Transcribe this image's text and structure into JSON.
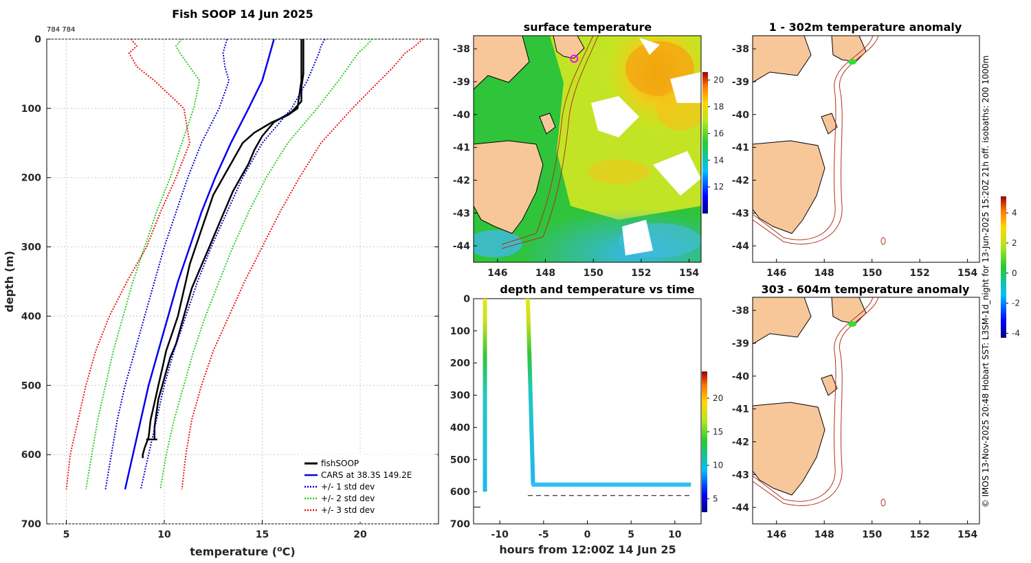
{
  "figure_title": "Fish SOOP 14 Jun 2025",
  "corner_note": "784 784",
  "side_note": "© IMOS 13-Nov-2025 20:48 Hobart SST: L3SM-1d_night for 13-Jun-2025 15:20Z 21h off. isobaths: 200  1000m",
  "colors": {
    "fish": "#000000",
    "cars": "#0000ee",
    "std1": "#0000cc",
    "std2": "#22cc22",
    "std3": "#ee1111",
    "land": "#f7c79a",
    "isobath": "#b03020"
  },
  "chart_data": [
    {
      "id": "profile",
      "type": "line",
      "title": "Fish SOOP 14 Jun 2025",
      "xlabel": "temperature (°C)",
      "ylabel": "depth (m)",
      "xlim": [
        4,
        24
      ],
      "ylim": [
        0,
        700
      ],
      "xticks": [
        "5",
        "10",
        "15",
        "20"
      ],
      "yticks": [
        "0",
        "100",
        "200",
        "300",
        "400",
        "500",
        "600",
        "700"
      ],
      "legend": [
        "fishSOOP",
        "CARS at 38.3S 149.2E",
        "+/- 1 std dev",
        "+/- 2 std dev",
        "+/- 3 std dev"
      ],
      "series": [
        {
          "name": "fishSOOP down",
          "depth": [
            0,
            20,
            40,
            60,
            80,
            100,
            110,
            120,
            135,
            150,
            175,
            200,
            225,
            250,
            275,
            300,
            325,
            350,
            375,
            400,
            425,
            450,
            475,
            500,
            525,
            550,
            575,
            590,
            600,
            605
          ],
          "temp": [
            17,
            17,
            17,
            17,
            16.9,
            16.8,
            16.3,
            15.5,
            14.6,
            14.0,
            13.5,
            13.0,
            12.5,
            12.2,
            11.9,
            11.6,
            11.3,
            11.1,
            10.9,
            10.7,
            10.4,
            10.1,
            9.9,
            9.7,
            9.5,
            9.3,
            9.2,
            9.0,
            8.9,
            8.9
          ]
        },
        {
          "name": "fishSOOP up",
          "depth": [
            578,
            560,
            540,
            520,
            500,
            480,
            460,
            440,
            420,
            400,
            380,
            360,
            340,
            320,
            300,
            280,
            260,
            240,
            220,
            200,
            180,
            160,
            140,
            120,
            105,
            90,
            70,
            50,
            30,
            0
          ],
          "temp": [
            9.5,
            9.5,
            9.6,
            9.7,
            9.9,
            10.1,
            10.3,
            10.6,
            10.8,
            11.0,
            11.2,
            11.4,
            11.7,
            12.0,
            12.3,
            12.6,
            12.9,
            13.2,
            13.5,
            13.9,
            14.3,
            14.6,
            15.0,
            15.6,
            16.5,
            17.0,
            17.0,
            17.1,
            17.1,
            17.1
          ]
        },
        {
          "name": "CARS at 38.3S 149.2E",
          "depth": [
            0,
            10,
            30,
            60,
            100,
            150,
            200,
            250,
            300,
            350,
            400,
            450,
            500,
            550,
            600,
            650
          ],
          "temp": [
            15.6,
            15.5,
            15.3,
            15.0,
            14.3,
            13.4,
            12.6,
            11.9,
            11.3,
            10.7,
            10.2,
            9.7,
            9.2,
            8.8,
            8.4,
            8.0
          ]
        },
        {
          "name": "+1 std",
          "depth": [
            0,
            10,
            20,
            40,
            60,
            100,
            150,
            200,
            250,
            300,
            350,
            400,
            450,
            500,
            550,
            600,
            650
          ],
          "temp": [
            18.2,
            18.0,
            17.9,
            17.6,
            17.3,
            16.5,
            15.0,
            14.0,
            13.2,
            12.4,
            11.7,
            11.1,
            10.5,
            10.0,
            9.6,
            9.2,
            8.8
          ]
        },
        {
          "name": "-1 std",
          "depth": [
            0,
            10,
            20,
            40,
            60,
            100,
            150,
            200,
            250,
            300,
            350,
            400,
            450,
            500,
            550,
            600,
            650
          ],
          "temp": [
            13.2,
            13.1,
            13.0,
            13.1,
            13.3,
            12.8,
            11.9,
            11.2,
            10.6,
            10.0,
            9.5,
            9.0,
            8.5,
            8.0,
            7.6,
            7.3,
            7.0
          ]
        },
        {
          "name": "+2 std",
          "depth": [
            0,
            10,
            20,
            40,
            60,
            100,
            150,
            200,
            250,
            300,
            350,
            400,
            450,
            500,
            550,
            600,
            650
          ],
          "temp": [
            20.6,
            20.3,
            19.9,
            19.4,
            18.9,
            17.8,
            16.3,
            15.2,
            14.3,
            13.5,
            12.8,
            12.1,
            11.5,
            11.0,
            10.5,
            10.1,
            9.8
          ]
        },
        {
          "name": "-2 std",
          "depth": [
            0,
            10,
            20,
            40,
            60,
            100,
            150,
            200,
            250,
            300,
            350,
            400,
            450,
            500,
            550,
            600,
            650
          ],
          "temp": [
            10.9,
            10.6,
            10.8,
            11.3,
            11.8,
            11.5,
            10.9,
            10.3,
            9.6,
            9.0,
            8.4,
            7.9,
            7.4,
            7.0,
            6.6,
            6.3,
            6.0
          ]
        },
        {
          "name": "+3 std",
          "depth": [
            0,
            10,
            20,
            40,
            60,
            100,
            150,
            200,
            250,
            300,
            350,
            400,
            450,
            500,
            550,
            600,
            650
          ],
          "temp": [
            23.2,
            22.8,
            22.3,
            21.7,
            21.0,
            19.6,
            18.0,
            16.9,
            15.9,
            15.0,
            14.1,
            13.3,
            12.5,
            11.9,
            11.4,
            11.1,
            10.9
          ]
        },
        {
          "name": "-3 std",
          "depth": [
            0,
            10,
            20,
            40,
            60,
            100,
            150,
            200,
            250,
            300,
            350,
            400,
            450,
            500,
            550,
            600,
            650
          ],
          "temp": [
            8.3,
            8.6,
            8.2,
            8.6,
            9.5,
            11.0,
            11.3,
            10.6,
            9.8,
            9.1,
            8.1,
            7.2,
            6.5,
            6.0,
            5.6,
            5.2,
            5.0
          ]
        }
      ]
    },
    {
      "id": "sst_map",
      "type": "heatmap",
      "title": "surface temperature",
      "xlim": [
        145,
        154.5
      ],
      "ylim": [
        -44.5,
        -37.6
      ],
      "xticks": [
        "146",
        "148",
        "150",
        "152",
        "154"
      ],
      "yticks": [
        "-38",
        "-39",
        "-40",
        "-41",
        "-42",
        "-43",
        "-44"
      ],
      "colorbar": {
        "min": 10,
        "max": 20.6,
        "ticks": [
          "12",
          "14",
          "16",
          "18",
          "20"
        ]
      },
      "marker": {
        "lon": 149.2,
        "lat": -38.3
      }
    },
    {
      "id": "depth_time",
      "type": "scatter",
      "title": "depth and temperature vs time",
      "xlabel": "hours from 12:00Z 14 Jun 25",
      "xlim": [
        -13,
        13
      ],
      "ylim": [
        0,
        700
      ],
      "xticks": [
        "-10",
        "-5",
        "0",
        "5",
        "10"
      ],
      "yticks": [
        "0",
        "100",
        "200",
        "300",
        "400",
        "500",
        "600",
        "700"
      ],
      "colorbar": {
        "min": 3,
        "max": 24,
        "ticks": [
          "5",
          "10",
          "15",
          "20"
        ]
      },
      "casts": [
        {
          "hour_start": -11.7,
          "depth_max": 600
        },
        {
          "hour_start": -6.8,
          "hour_bottom": -6.2,
          "hour_end": 12.0,
          "depth_max": 578
        }
      ],
      "bottom_depth": 612
    },
    {
      "id": "anom_1",
      "type": "heatmap",
      "title": "1 - 302m temperature anomaly",
      "xlim": [
        145,
        154.5
      ],
      "ylim": [
        -44.5,
        -37.6
      ],
      "xticks": [
        "146",
        "148",
        "150",
        "152",
        "154"
      ],
      "yticks": [
        "-38",
        "-39",
        "-40",
        "-41",
        "-42",
        "-43",
        "-44"
      ]
    },
    {
      "id": "anom_2",
      "type": "heatmap",
      "title": "303 - 604m temperature anomaly",
      "xlim": [
        145,
        154.5
      ],
      "ylim": [
        -44.5,
        -37.6
      ],
      "xticks": [
        "146",
        "148",
        "150",
        "152",
        "154"
      ],
      "yticks": [
        "-38",
        "-39",
        "-40",
        "-41",
        "-42",
        "-43",
        "-44"
      ],
      "colorbar": {
        "min": -4.3,
        "max": 5.1,
        "ticks": [
          "4",
          "2",
          "0",
          "-2",
          "-4"
        ]
      }
    }
  ]
}
